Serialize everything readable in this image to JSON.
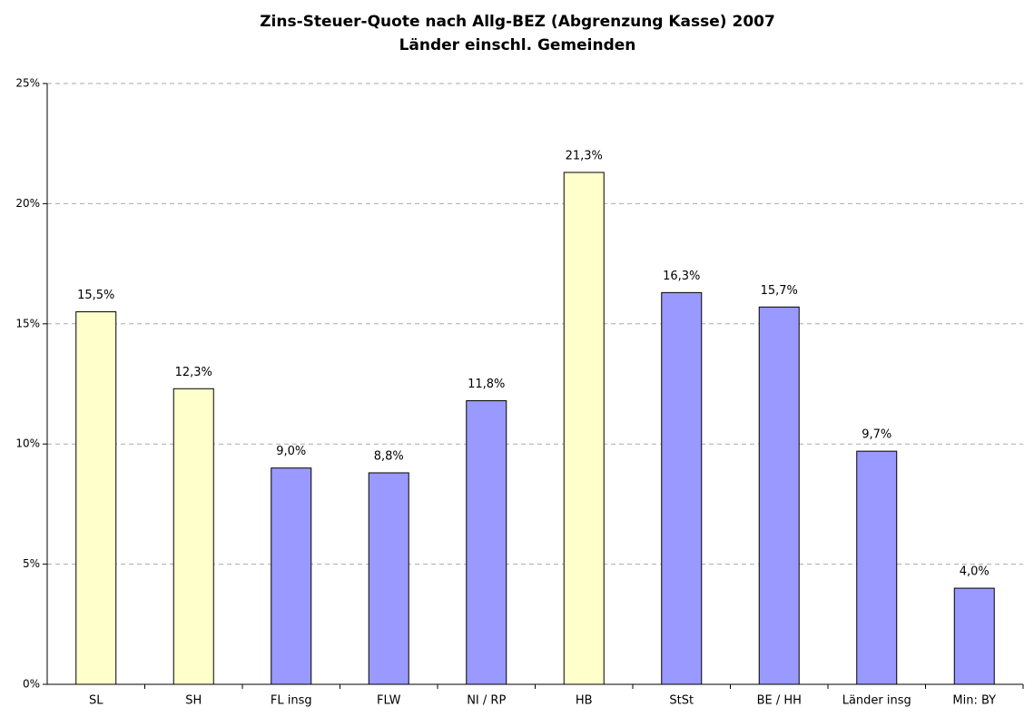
{
  "chart_data": {
    "type": "bar",
    "title": "Zins-Steuer-Quote nach Allg-BEZ (Abgrenzung Kasse) 2007",
    "subtitle": "Länder einschl. Gemeinden",
    "categories": [
      "SL",
      "SH",
      "FL insg",
      "FLW",
      "NI / RP",
      "HB",
      "StSt",
      "BE / HH",
      "Länder insg",
      "Min: BY"
    ],
    "values": [
      15.5,
      12.3,
      9.0,
      8.8,
      11.8,
      21.3,
      16.3,
      15.7,
      9.7,
      4.0
    ],
    "value_labels": [
      "15,5%",
      "12,3%",
      "9,0%",
      "8,8%",
      "11,8%",
      "21,3%",
      "16,3%",
      "15,7%",
      "9,7%",
      "4,0%"
    ],
    "colors": [
      "#ffffcc",
      "#ffffcc",
      "#9999ff",
      "#9999ff",
      "#9999ff",
      "#ffffcc",
      "#9999ff",
      "#9999ff",
      "#9999ff",
      "#9999ff"
    ],
    "ylim": [
      0,
      25
    ],
    "yticks": [
      {
        "value": 0,
        "label": "0%"
      },
      {
        "value": 5,
        "label": "5%"
      },
      {
        "value": 10,
        "label": "10%"
      },
      {
        "value": 15,
        "label": "15%"
      },
      {
        "value": 20,
        "label": "20%"
      },
      {
        "value": 25,
        "label": "25%"
      }
    ],
    "grid": true
  }
}
